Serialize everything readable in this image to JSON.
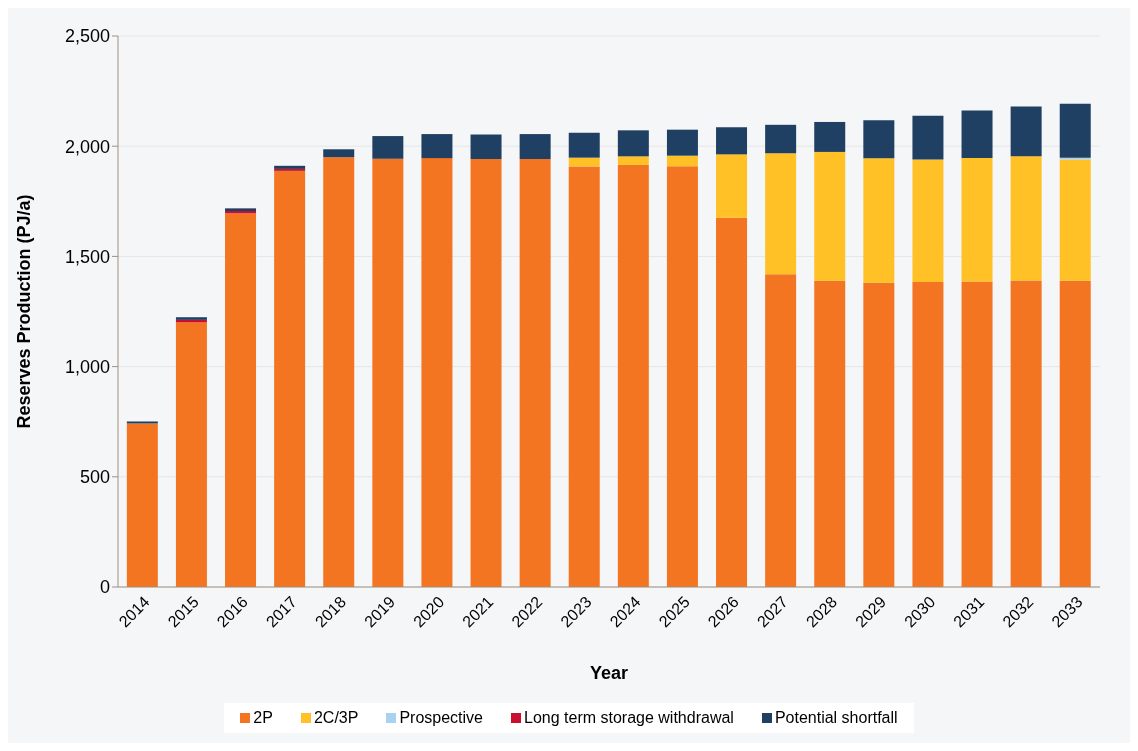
{
  "chart_data": {
    "type": "bar",
    "stacked": true,
    "xlabel": "Year",
    "ylabel": "Reserves Production (PJ/a)",
    "categories": [
      "2014",
      "2015",
      "2016",
      "2017",
      "2018",
      "2019",
      "2020",
      "2021",
      "2022",
      "2023",
      "2024",
      "2025",
      "2026",
      "2027",
      "2028",
      "2029",
      "2030",
      "2031",
      "2032",
      "2033"
    ],
    "series": [
      {
        "name": "2P",
        "color": "#f47521",
        "values": [
          742,
          1201,
          1695,
          1888,
          1950,
          1943,
          1946,
          1942,
          1942,
          1908,
          1915,
          1909,
          1675,
          1419,
          1389,
          1380,
          1384,
          1386,
          1391,
          1389
        ]
      },
      {
        "name": "2C/3P",
        "color": "#ffc125",
        "values": [
          0,
          0,
          0,
          0,
          0,
          0,
          0,
          0,
          0,
          40,
          39,
          48,
          288,
          549,
          585,
          565,
          556,
          560,
          563,
          551
        ]
      },
      {
        "name": "Prospective",
        "color": "#a9d1f0",
        "values": [
          0,
          0,
          0,
          0,
          0,
          0,
          0,
          0,
          0,
          0,
          0,
          0,
          0,
          0,
          0,
          0,
          0,
          0,
          0,
          8
        ]
      },
      {
        "name": "Long term storage withdrawal",
        "color": "#c8102e",
        "values": [
          0,
          11,
          11,
          9,
          null,
          0,
          0,
          0,
          0,
          0,
          0,
          0,
          0,
          0,
          0,
          0,
          0,
          0,
          0,
          0
        ]
      },
      {
        "name": "Potential shortfall",
        "color": "#1f3f63",
        "values": [
          9,
          12,
          12,
          14,
          36,
          103,
          109,
          111,
          113,
          113,
          118,
          118,
          123,
          129,
          136,
          173,
          198,
          216,
          226,
          245
        ]
      }
    ],
    "ylim": [
      0,
      2500
    ],
    "yticks": [
      0,
      500,
      {
        "value": 1000,
        "label": "1,000"
      },
      {
        "value": 1500,
        "label": "1,500"
      },
      {
        "value": 2000,
        "label": "2,000"
      },
      {
        "value": 2500,
        "label": "2,500"
      }
    ],
    "grid": "y",
    "legend": "bottom"
  }
}
